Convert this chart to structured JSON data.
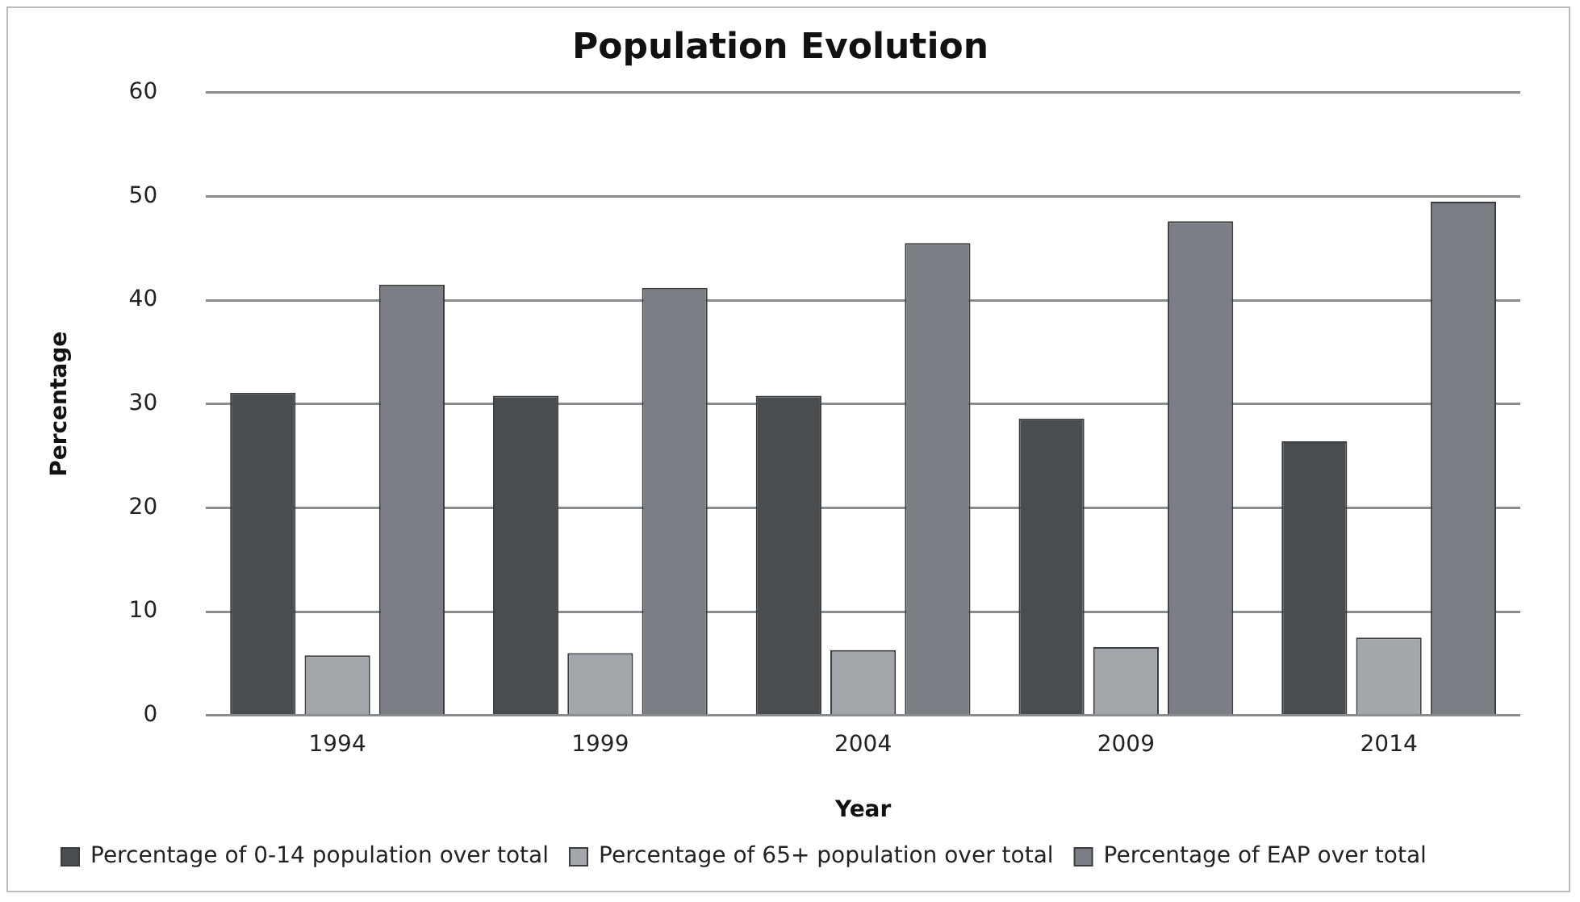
{
  "chart_data": {
    "type": "bar",
    "title": "Population Evolution",
    "xlabel": "Year",
    "ylabel": "Percentage",
    "categories": [
      "1994",
      "1999",
      "2004",
      "2009",
      "2014"
    ],
    "series": [
      {
        "name": "Percentage of 0-14 population over total",
        "color": "#4a4d50",
        "values": [
          31.1,
          30.8,
          30.8,
          28.6,
          26.4
        ]
      },
      {
        "name": "Percentage of 65+ population over total",
        "color": "#a3a6ab",
        "values": [
          5.8,
          6.0,
          6.3,
          6.6,
          7.5
        ]
      },
      {
        "name": "Percentage of EAP over total",
        "color": "#7b7e84",
        "values": [
          41.5,
          41.2,
          45.5,
          47.6,
          49.5
        ]
      }
    ],
    "ylim": [
      0,
      60
    ],
    "yticks": [
      0,
      10,
      20,
      30,
      40,
      50,
      60
    ],
    "grid": "y",
    "legend": "bottom"
  }
}
